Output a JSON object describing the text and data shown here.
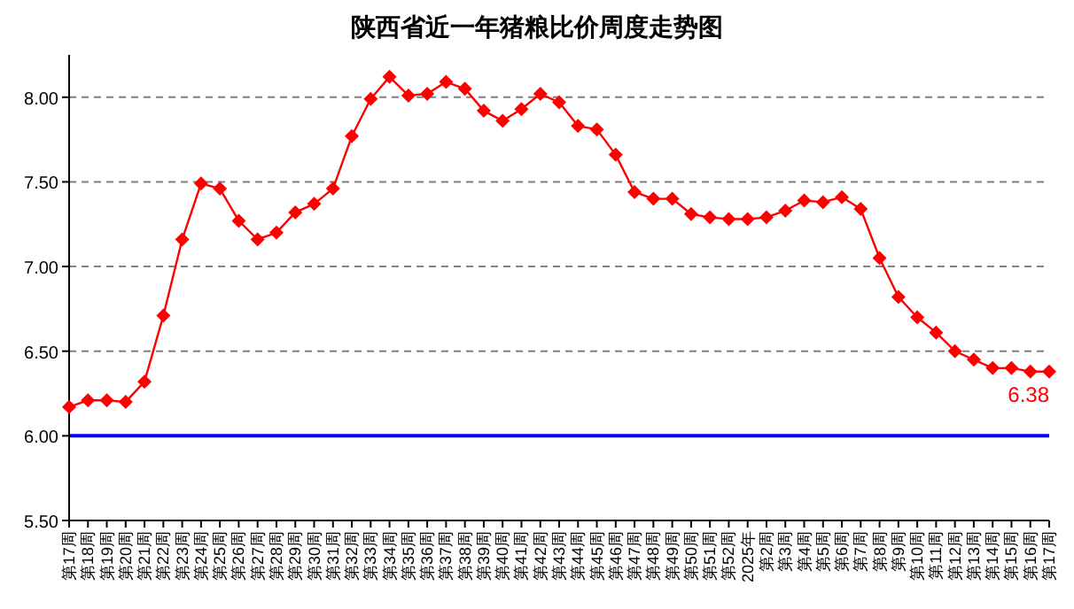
{
  "chart_data": {
    "type": "line",
    "title": "陕西省近一年猪粮比价周度走势图",
    "categories": [
      "第17周",
      "第18周",
      "第19周",
      "第20周",
      "第21周",
      "第22周",
      "第23周",
      "第24周",
      "第25周",
      "第26周",
      "第27周",
      "第28周",
      "第29周",
      "第30周",
      "第31周",
      "第32周",
      "第33周",
      "第34周",
      "第35周",
      "第36周",
      "第37周",
      "第38周",
      "第39周",
      "第40周",
      "第41周",
      "第42周",
      "第43周",
      "第44周",
      "第45周",
      "第46周",
      "第47周",
      "第48周",
      "第49周",
      "第50周",
      "第51周",
      "第52周",
      "2025年",
      "第2周",
      "第3周",
      "第4周",
      "第5周",
      "第6周",
      "第7周",
      "第8周",
      "第9周",
      "第10周",
      "第11周",
      "第12周",
      "第13周",
      "第14周",
      "第15周",
      "第16周",
      "第17周"
    ],
    "series": [
      {
        "color": "#ff0000",
        "values": [
          6.17,
          6.21,
          6.21,
          6.2,
          6.32,
          6.71,
          7.16,
          7.49,
          7.46,
          7.27,
          7.16,
          7.2,
          7.32,
          7.37,
          7.46,
          7.77,
          7.99,
          8.12,
          8.01,
          8.02,
          8.09,
          8.05,
          7.92,
          7.86,
          7.93,
          8.02,
          7.97,
          7.83,
          7.81,
          7.66,
          7.44,
          7.4,
          7.4,
          7.31,
          7.29,
          7.28,
          7.28,
          7.29,
          7.33,
          7.39,
          7.38,
          7.41,
          7.34,
          7.05,
          6.82,
          6.7,
          6.61,
          6.5,
          6.45,
          6.4,
          6.4,
          6.38,
          6.38
        ],
        "value_labels": [
          null,
          null,
          null,
          null,
          null,
          null,
          null,
          null,
          null,
          null,
          null,
          null,
          null,
          null,
          null,
          null,
          null,
          null,
          null,
          null,
          null,
          null,
          null,
          null,
          null,
          null,
          null,
          null,
          null,
          null,
          null,
          null,
          null,
          null,
          null,
          null,
          null,
          null,
          null,
          null,
          null,
          null,
          null,
          null,
          null,
          null,
          null,
          null,
          null,
          null,
          null,
          null,
          "6.38"
        ]
      }
    ],
    "ylim": [
      5.5,
      8.25
    ],
    "yticks": [
      {
        "value": 5.5,
        "label": "5.50"
      },
      {
        "value": 6,
        "label": "6.00"
      },
      {
        "value": 6.5,
        "label": "6.50"
      },
      {
        "value": 7,
        "label": "7.00"
      },
      {
        "value": 7.5,
        "label": "7.50"
      },
      {
        "value": 8,
        "label": "8.00"
      }
    ],
    "ref_lines": [
      {
        "axis": "y",
        "value": 6,
        "color": "#0000ff"
      }
    ],
    "grid": "y",
    "marker": "diamond",
    "line_style": "solid"
  }
}
